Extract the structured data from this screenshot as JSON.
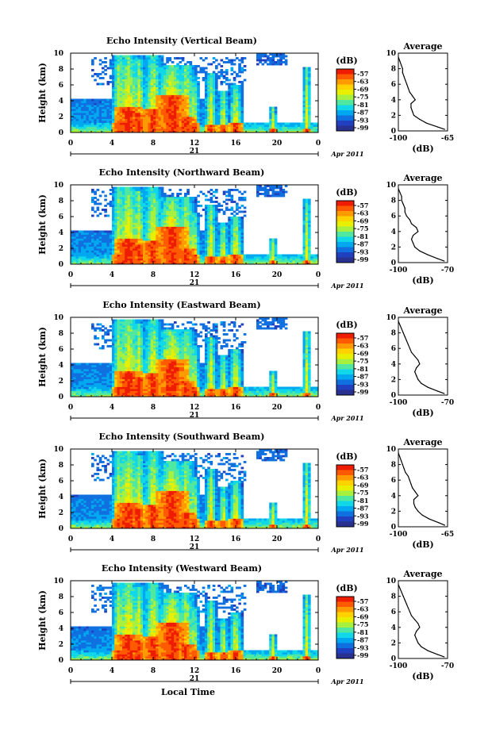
{
  "chart_data": [
    {
      "type": "heatmap",
      "title": "Echo Intensity (Vertical Beam)",
      "ylabel": "Height (km)",
      "xlim": [
        0,
        24
      ],
      "ylim": [
        0,
        10
      ],
      "xticks": [
        "0",
        "4",
        "8",
        "12",
        "16",
        "20",
        "0"
      ],
      "yticks": [
        "0",
        "2",
        "4",
        "6",
        "8",
        "10"
      ],
      "date_day": "21",
      "date_month": "Apr 2011",
      "colorbar": {
        "unit": "(dB)",
        "levels": [
          "-57",
          "-63",
          "-69",
          "-75",
          "-81",
          "-87",
          "-93",
          "-99"
        ]
      },
      "profile": {
        "title": "Average",
        "xlabel": "(dB)",
        "xlim": [
          -100,
          -65
        ],
        "xticks": [
          "-100",
          "-65"
        ],
        "yticks": [
          "0",
          "2",
          "4",
          "6",
          "8",
          "10"
        ],
        "heights": [
          0.2,
          0.5,
          1,
          1.5,
          2,
          2.5,
          3,
          3.5,
          4,
          4.5,
          5,
          5.5,
          6,
          6.5,
          7,
          7.5,
          8,
          8.5,
          9,
          9.5
        ],
        "values": [
          -67,
          -72,
          -80,
          -85,
          -89,
          -90,
          -91,
          -91,
          -88,
          -90,
          -92,
          -93,
          -94,
          -95,
          -96,
          -97,
          -97,
          -98,
          -99,
          -100
        ]
      }
    },
    {
      "type": "heatmap",
      "title": "Echo Intensity (Northward Beam)",
      "ylabel": "Height (km)",
      "xlim": [
        0,
        24
      ],
      "ylim": [
        0,
        10
      ],
      "xticks": [
        "0",
        "4",
        "8",
        "12",
        "16",
        "20",
        "0"
      ],
      "yticks": [
        "0",
        "2",
        "4",
        "6",
        "8",
        "10"
      ],
      "date_day": "21",
      "date_month": "Apr 2011",
      "colorbar": {
        "unit": "(dB)",
        "levels": [
          "-57",
          "-63",
          "-69",
          "-75",
          "-81",
          "-87",
          "-93",
          "-99"
        ]
      },
      "profile": {
        "title": "Average",
        "xlabel": "(dB)",
        "xlim": [
          -100,
          -70
        ],
        "xticks": [
          "-100",
          "-70"
        ],
        "yticks": [
          "0",
          "2",
          "4",
          "6",
          "8",
          "10"
        ],
        "heights": [
          0.2,
          0.5,
          1,
          1.5,
          2,
          2.5,
          3,
          3.5,
          4,
          4.5,
          5,
          5.5,
          6,
          6.5,
          7,
          7.5,
          8,
          8.5,
          9,
          9.5
        ],
        "values": [
          -72,
          -76,
          -82,
          -87,
          -90,
          -91,
          -92,
          -91,
          -88,
          -89,
          -92,
          -93,
          -95,
          -96,
          -96,
          -97,
          -98,
          -98,
          -99,
          -100
        ]
      }
    },
    {
      "type": "heatmap",
      "title": "Echo Intensity (Eastward Beam)",
      "ylabel": "Height (km)",
      "xlim": [
        0,
        24
      ],
      "ylim": [
        0,
        10
      ],
      "xticks": [
        "0",
        "4",
        "8",
        "12",
        "16",
        "20",
        "0"
      ],
      "yticks": [
        "0",
        "2",
        "4",
        "6",
        "8",
        "10"
      ],
      "date_day": "21",
      "date_month": "Apr 2011",
      "colorbar": {
        "unit": "(dB)",
        "levels": [
          "-57",
          "-63",
          "-69",
          "-75",
          "-81",
          "-87",
          "-93",
          "-99"
        ]
      },
      "profile": {
        "title": "Average",
        "xlabel": "(dB)",
        "xlim": [
          -100,
          -70
        ],
        "xticks": [
          "-100",
          "-70"
        ],
        "yticks": [
          "0",
          "2",
          "4",
          "6",
          "8",
          "10"
        ],
        "heights": [
          0.2,
          0.5,
          1,
          1.5,
          2,
          2.5,
          3,
          3.5,
          4,
          4.5,
          5,
          5.5,
          6,
          6.5,
          7,
          7.5,
          8,
          8.5,
          9,
          9.5
        ],
        "values": [
          -72,
          -76,
          -82,
          -86,
          -88,
          -89,
          -90,
          -89,
          -87,
          -88,
          -90,
          -92,
          -93,
          -94,
          -95,
          -96,
          -97,
          -98,
          -99,
          -100
        ]
      }
    },
    {
      "type": "heatmap",
      "title": "Echo Intensity (Southward Beam)",
      "ylabel": "Height (km)",
      "xlim": [
        0,
        24
      ],
      "ylim": [
        0,
        10
      ],
      "xticks": [
        "0",
        "4",
        "8",
        "12",
        "16",
        "20",
        "0"
      ],
      "yticks": [
        "0",
        "2",
        "4",
        "6",
        "8",
        "10"
      ],
      "date_day": "21",
      "date_month": "Apr 2011",
      "colorbar": {
        "unit": "(dB)",
        "levels": [
          "-57",
          "-63",
          "-69",
          "-75",
          "-81",
          "-87",
          "-93",
          "-99"
        ]
      },
      "profile": {
        "title": "Average",
        "xlabel": "(dB)",
        "xlim": [
          -100,
          -65
        ],
        "xticks": [
          "-100",
          "-65"
        ],
        "yticks": [
          "0",
          "2",
          "4",
          "6",
          "8",
          "10"
        ],
        "heights": [
          0.2,
          0.5,
          1,
          1.5,
          2,
          2.5,
          3,
          3.5,
          4,
          4.5,
          5,
          5.5,
          6,
          6.5,
          7,
          7.5,
          8,
          8.5,
          9,
          9.5
        ],
        "values": [
          -67,
          -71,
          -78,
          -83,
          -86,
          -88,
          -89,
          -89,
          -86,
          -88,
          -90,
          -91,
          -92,
          -93,
          -95,
          -96,
          -97,
          -98,
          -99,
          -100
        ]
      }
    },
    {
      "type": "heatmap",
      "title": "Echo Intensity (Westward Beam)",
      "ylabel": "Height (km)",
      "xlabel": "Local Time",
      "xlim": [
        0,
        24
      ],
      "ylim": [
        0,
        10
      ],
      "xticks": [
        "0",
        "4",
        "8",
        "12",
        "16",
        "20",
        "0"
      ],
      "yticks": [
        "0",
        "2",
        "4",
        "6",
        "8",
        "10"
      ],
      "date_day": "21",
      "date_month": "Apr 2011",
      "colorbar": {
        "unit": "(dB)",
        "levels": [
          "-57",
          "-63",
          "-69",
          "-75",
          "-81",
          "-87",
          "-93",
          "-99"
        ]
      },
      "profile": {
        "title": "Average",
        "xlabel": "(dB)",
        "xlim": [
          -100,
          -70
        ],
        "xticks": [
          "-100",
          "-70"
        ],
        "yticks": [
          "0",
          "2",
          "4",
          "6",
          "8",
          "10"
        ],
        "heights": [
          0.2,
          0.5,
          1,
          1.5,
          2,
          2.5,
          3,
          3.5,
          4,
          4.5,
          5,
          5.5,
          6,
          6.5,
          7,
          7.5,
          8,
          8.5,
          9,
          9.5
        ],
        "values": [
          -72,
          -76,
          -82,
          -86,
          -88,
          -89,
          -90,
          -89,
          -87,
          -88,
          -90,
          -92,
          -93,
          -94,
          -95,
          -96,
          -97,
          -98,
          -99,
          -100
        ]
      }
    }
  ],
  "colors": {
    "scale": [
      "#ee1c00",
      "#ff5a00",
      "#ff9a00",
      "#ffd200",
      "#e8f000",
      "#a8f040",
      "#50e8a0",
      "#10d8e8",
      "#00a8f0",
      "#1070e0",
      "#2040c0",
      "#283090"
    ]
  }
}
